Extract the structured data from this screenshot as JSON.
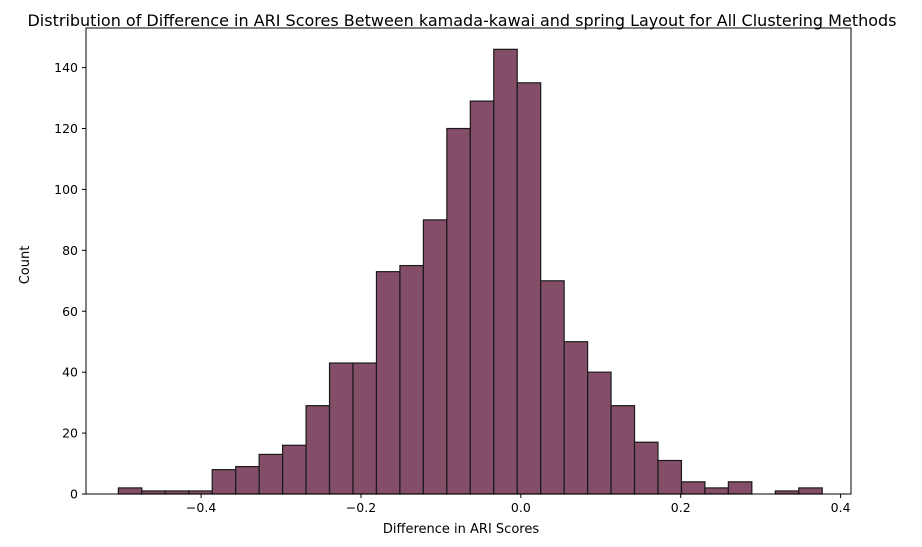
{
  "chart_data": {
    "type": "bar",
    "title": "Distribution of Difference in ARI Scores Between kamada-kawai and spring Layout for All Clustering Methods",
    "xlabel": "Difference in ARI Scores",
    "ylabel": "Count",
    "xlim": [
      -0.544,
      0.413
    ],
    "ylim": [
      0,
      153
    ],
    "x_ticks": [
      -0.4,
      -0.2,
      0.0,
      0.2,
      0.4
    ],
    "x_tick_labels": [
      "−0.4",
      "−0.2",
      "0.0",
      "0.2",
      "0.4"
    ],
    "y_ticks": [
      0,
      20,
      40,
      60,
      80,
      100,
      120,
      140
    ],
    "y_tick_labels": [
      "0",
      "20",
      "40",
      "60",
      "80",
      "100",
      "120",
      "140"
    ],
    "bin_start": -0.5035,
    "bin_width": 0.02935,
    "values": [
      2,
      1,
      1,
      1,
      8,
      9,
      13,
      16,
      29,
      43,
      43,
      73,
      75,
      90,
      120,
      129,
      146,
      135,
      70,
      50,
      40,
      29,
      17,
      11,
      4,
      2,
      4,
      0,
      1,
      2
    ],
    "bar_color": "#7d4360",
    "edge_color": "#1a1a1a",
    "grid": false,
    "legend": "none"
  }
}
